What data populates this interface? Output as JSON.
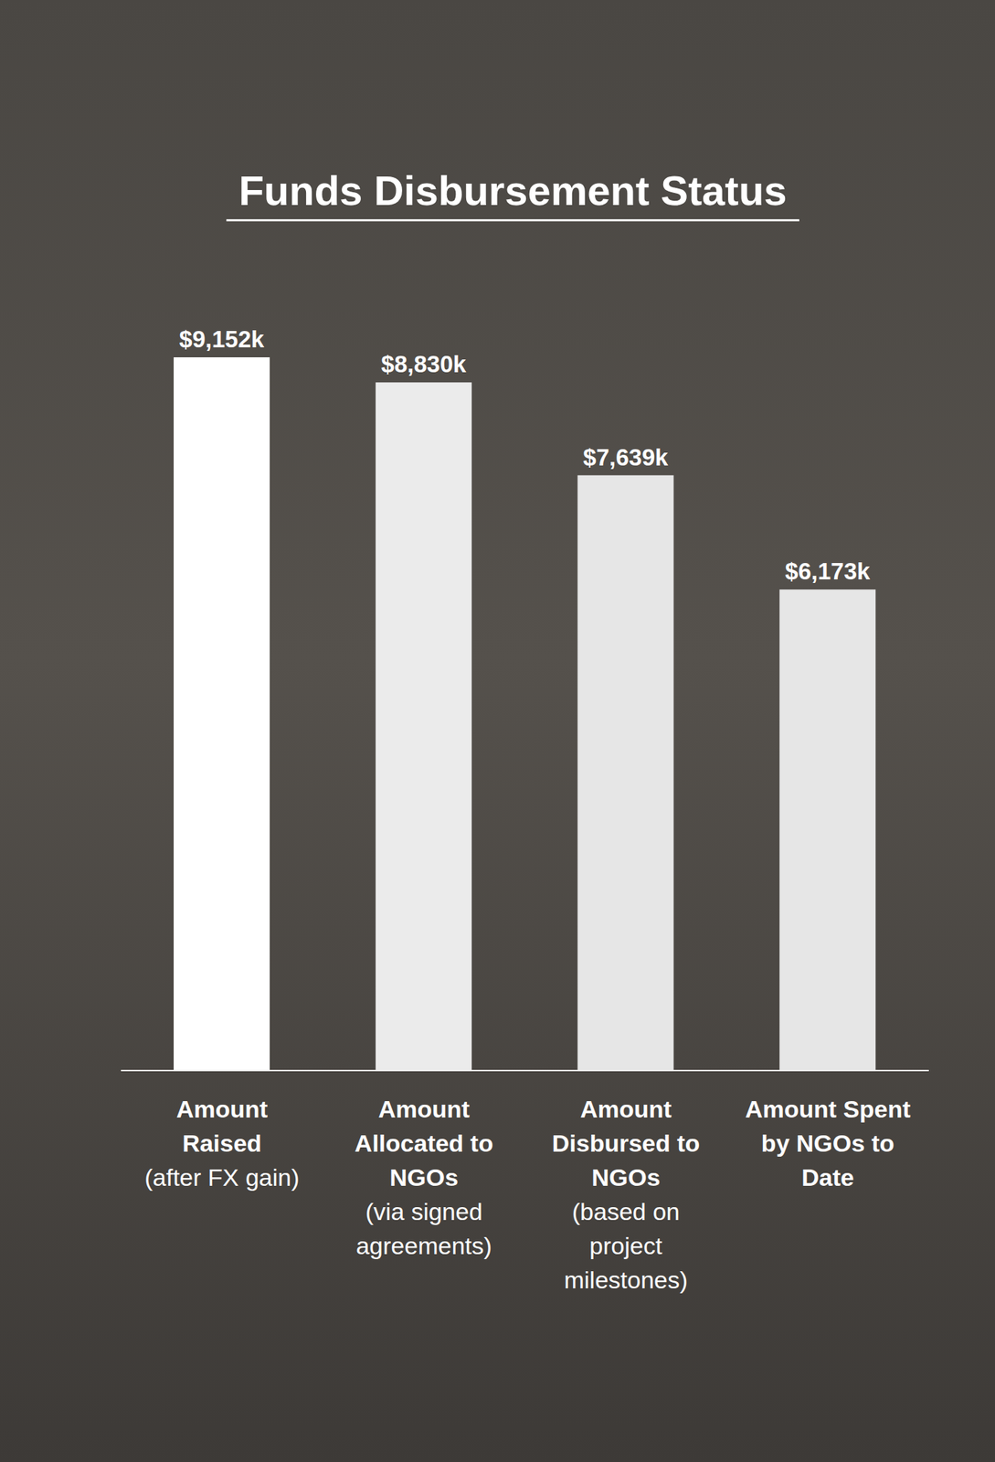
{
  "chart_data": {
    "type": "bar",
    "title": "Funds Disbursement Status",
    "categories": [
      "Amount Raised (after FX gain)",
      "Amount Allocated to NGOs (via signed agreements)",
      "Amount Disbursed to NGOs (based on project milestones)",
      "Amount Spent by NGOs to Date"
    ],
    "values": [
      9152,
      8830,
      7639,
      6173
    ],
    "value_labels": [
      "$9,152k",
      "$8,830k",
      "$7,639k",
      "$6,173k"
    ],
    "colors": [
      "#ffffff",
      "#ebebeb",
      "#e6e6e6",
      "#e6e6e6"
    ],
    "data_labels": true,
    "tick_labels": "x",
    "grid": false
  }
}
